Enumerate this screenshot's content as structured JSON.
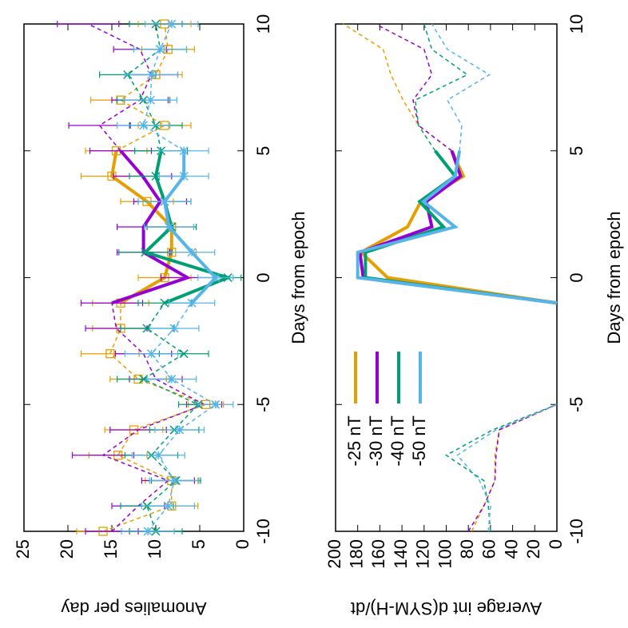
{
  "chart_data": [
    {
      "type": "line",
      "xlabel": "Days from epoch",
      "ylabel": "Anomalies per day",
      "x": [
        -10,
        -9,
        -8,
        -7,
        -6,
        -5,
        -4,
        -3,
        -2,
        -1,
        0,
        1,
        2,
        3,
        4,
        5,
        6,
        7,
        8,
        9,
        10
      ],
      "xlim": [
        -10,
        10
      ],
      "xticks": [
        -10,
        -5,
        0,
        5,
        10
      ],
      "ylim": [
        0,
        25
      ],
      "yticks": [
        0,
        5,
        10,
        15,
        20,
        25
      ],
      "solid_range": [
        -1,
        5
      ],
      "series": [
        {
          "color": "#e69f00",
          "marker": "square",
          "values": [
            16,
            8.2,
            8.2,
            14.3,
            12.5,
            4.3,
            12,
            15.2,
            14,
            14,
            9,
            8.2,
            8.2,
            11,
            15,
            14.5,
            9,
            14,
            10,
            8.6,
            9
          ],
          "errors": [
            3,
            3,
            3,
            3.3,
            3.3,
            2,
            3.2,
            3.3,
            3.2,
            3.2,
            3,
            2.8,
            2.8,
            3,
            3.5,
            3.5,
            3,
            3.4,
            3,
            3,
            3
          ]
        },
        {
          "color": "#9400d3",
          "marker": "none",
          "values": [
            15,
            12,
            8.6,
            16,
            12,
            4.5,
            10,
            11.4,
            14.5,
            15,
            6.4,
            11.4,
            11.4,
            9.5,
            11.5,
            14,
            16.4,
            11.8,
            10.5,
            11.8,
            17.7
          ],
          "errors": [
            3,
            3,
            3,
            3.5,
            3.2,
            2,
            3,
            3.2,
            3.5,
            3.5,
            3,
            3,
            3,
            3,
            3.3,
            3.5,
            3.5,
            3.2,
            3,
            3,
            3.5
          ]
        },
        {
          "color": "#009e73",
          "marker": "x",
          "values": [
            10,
            11,
            7.7,
            10.5,
            7.9,
            5.2,
            11.4,
            6.8,
            11,
            9,
            1.8,
            11.2,
            8.2,
            9,
            10,
            9.4,
            10,
            11.4,
            13.2,
            9.5,
            10
          ],
          "errors": [
            3,
            3,
            2.8,
            3,
            2.8,
            2.2,
            3,
            2.8,
            3,
            3,
            1.5,
            3,
            2.8,
            3,
            3,
            3,
            3,
            3,
            3.2,
            3,
            3
          ]
        },
        {
          "color": "#56b4e9",
          "marker": "star",
          "values": [
            10.9,
            8.6,
            7.9,
            9.7,
            7.3,
            3.2,
            8.2,
            10.5,
            7.9,
            5.9,
            3.2,
            5.9,
            8.5,
            9,
            6.8,
            6.8,
            11.4,
            10.6,
            10.5,
            9.5,
            8.2
          ],
          "errors": [
            3,
            3,
            2.8,
            3,
            2.8,
            2,
            2.8,
            3,
            2.8,
            2.6,
            2,
            2.6,
            2.8,
            3,
            2.8,
            2.8,
            3,
            3,
            3,
            3,
            3
          ]
        }
      ]
    },
    {
      "type": "line",
      "xlabel": "Days from epoch",
      "ylabel": "Average int d(SYM-H)/dt",
      "x": [
        -10,
        -9,
        -8,
        -7,
        -6,
        -5,
        -4,
        -3,
        -2,
        -1,
        0,
        1,
        2,
        3,
        4,
        5,
        6,
        7,
        8,
        9,
        10
      ],
      "xlim": [
        -10,
        10
      ],
      "xticks": [
        -10,
        -5,
        0,
        5,
        10
      ],
      "ylim": [
        0,
        200
      ],
      "yticks": [
        0,
        20,
        40,
        60,
        80,
        100,
        120,
        140,
        160,
        180,
        200
      ],
      "solid_range": [
        -1,
        5
      ],
      "legend": "top left",
      "series": [
        {
          "name": "-25 nT",
          "color": "#e69f00",
          "values": [
            77,
            66,
            56,
            56,
            52,
            0,
            null,
            null,
            null,
            0,
            153,
            177,
            135,
            123,
            84.5,
            95,
            125,
            139,
            150,
            157,
            193
          ]
        },
        {
          "name": "-30 nT",
          "color": "#9400d3",
          "values": [
            80,
            66,
            56,
            55,
            52,
            0,
            null,
            null,
            null,
            0,
            175,
            178,
            113,
            118,
            87,
            95,
            125,
            130,
            113,
            120,
            164
          ]
        },
        {
          "name": "-40 nT",
          "color": "#009e73",
          "values": [
            60,
            62,
            66,
            100,
            58,
            0,
            null,
            null,
            null,
            0,
            173,
            173,
            102.5,
            124,
            92,
            110,
            125,
            128,
            81,
            113,
            120
          ]
        },
        {
          "name": "-50 nT",
          "color": "#56b4e9",
          "values": [
            62,
            60,
            70,
            90,
            55,
            0,
            null,
            null,
            null,
            0,
            180,
            180,
            92,
            120.5,
            92,
            88,
            86,
            99,
            61,
            99,
            113
          ]
        }
      ]
    }
  ]
}
